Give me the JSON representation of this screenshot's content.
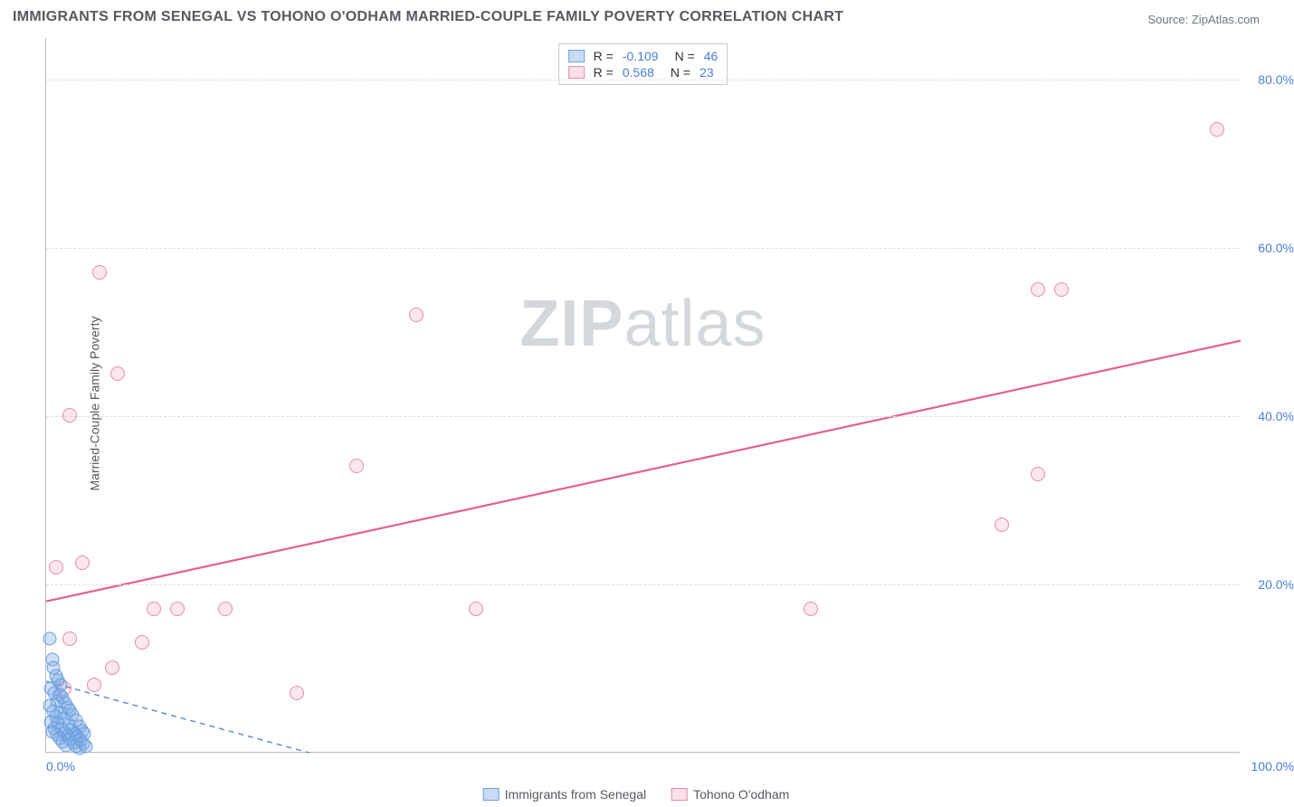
{
  "title": "IMMIGRANTS FROM SENEGAL VS TOHONO O'ODHAM MARRIED-COUPLE FAMILY POVERTY CORRELATION CHART",
  "source": "Source: ZipAtlas.com",
  "ylabel": "Married-Couple Family Poverty",
  "watermark_part1": "ZIP",
  "watermark_part2": "atlas",
  "legend_stats": {
    "rows": [
      {
        "swatch": "blue",
        "r_label": "R =",
        "r_value": "-0.109",
        "n_label": "N =",
        "n_value": "46"
      },
      {
        "swatch": "pink",
        "r_label": "R =",
        "r_value": "0.568",
        "n_label": "N =",
        "n_value": "23"
      }
    ]
  },
  "series_legend": [
    {
      "swatch": "blue",
      "label": "Immigrants from Senegal"
    },
    {
      "swatch": "pink",
      "label": "Tohono O'odham"
    }
  ],
  "chart": {
    "type": "scatter",
    "xlim": [
      0,
      100
    ],
    "ylim": [
      0,
      85
    ],
    "ytick_values": [
      20,
      40,
      60,
      80
    ],
    "ytick_labels": [
      "20.0%",
      "40.0%",
      "60.0%",
      "80.0%"
    ],
    "xtick_left": "0.0%",
    "xtick_right": "100.0%",
    "grid_color": "#dcdfe3",
    "background_color": "#ffffff",
    "blue_series": {
      "color_fill": "rgba(120,165,225,0.35)",
      "color_stroke": "#6a9fe0",
      "trendline": {
        "x1": 0,
        "y1": 8.5,
        "x2": 22,
        "y2": 0,
        "dashed": true,
        "width": 1.5
      },
      "points": [
        [
          0.3,
          13.5
        ],
        [
          0.5,
          11
        ],
        [
          0.6,
          10
        ],
        [
          0.8,
          9
        ],
        [
          1.0,
          8.5
        ],
        [
          1.2,
          8
        ],
        [
          0.4,
          7.5
        ],
        [
          0.7,
          7
        ],
        [
          1.1,
          6.8
        ],
        [
          1.4,
          6.5
        ],
        [
          0.9,
          6
        ],
        [
          1.6,
          5.8
        ],
        [
          0.3,
          5.5
        ],
        [
          1.8,
          5.3
        ],
        [
          2.0,
          5
        ],
        [
          0.6,
          4.8
        ],
        [
          1.2,
          4.6
        ],
        [
          2.2,
          4.4
        ],
        [
          0.8,
          4.2
        ],
        [
          1.5,
          4
        ],
        [
          2.5,
          3.8
        ],
        [
          0.4,
          3.6
        ],
        [
          1.0,
          3.4
        ],
        [
          1.9,
          3.2
        ],
        [
          2.8,
          3
        ],
        [
          0.7,
          2.8
        ],
        [
          1.3,
          2.7
        ],
        [
          2.1,
          2.6
        ],
        [
          3.0,
          2.5
        ],
        [
          0.5,
          2.4
        ],
        [
          1.6,
          2.3
        ],
        [
          2.4,
          2.2
        ],
        [
          3.2,
          2.1
        ],
        [
          0.9,
          2
        ],
        [
          1.8,
          1.9
        ],
        [
          2.6,
          1.8
        ],
        [
          1.1,
          1.6
        ],
        [
          2.0,
          1.5
        ],
        [
          2.9,
          1.4
        ],
        [
          1.4,
          1.2
        ],
        [
          2.3,
          1.1
        ],
        [
          3.1,
          1
        ],
        [
          1.7,
          0.8
        ],
        [
          2.5,
          0.7
        ],
        [
          3.3,
          0.6
        ],
        [
          2.8,
          0.4
        ]
      ]
    },
    "pink_series": {
      "color_fill": "rgba(235,130,165,0.18)",
      "color_stroke": "#e88aa8",
      "trendline": {
        "x1": 0,
        "y1": 18,
        "x2": 100,
        "y2": 49,
        "dashed": false,
        "width": 2.2
      },
      "points": [
        [
          0.8,
          22
        ],
        [
          3.0,
          22.5
        ],
        [
          4.5,
          57
        ],
        [
          2,
          40
        ],
        [
          8,
          13
        ],
        [
          6,
          45
        ],
        [
          4,
          8
        ],
        [
          5.5,
          10
        ],
        [
          9,
          17
        ],
        [
          11,
          17
        ],
        [
          15,
          17
        ],
        [
          21,
          7
        ],
        [
          26,
          34
        ],
        [
          31,
          52
        ],
        [
          36,
          17
        ],
        [
          64,
          17
        ],
        [
          80,
          27
        ],
        [
          83,
          33
        ],
        [
          85,
          55
        ],
        [
          83,
          55
        ],
        [
          98,
          74
        ],
        [
          2,
          13.5
        ],
        [
          1.5,
          7.5
        ]
      ]
    }
  }
}
